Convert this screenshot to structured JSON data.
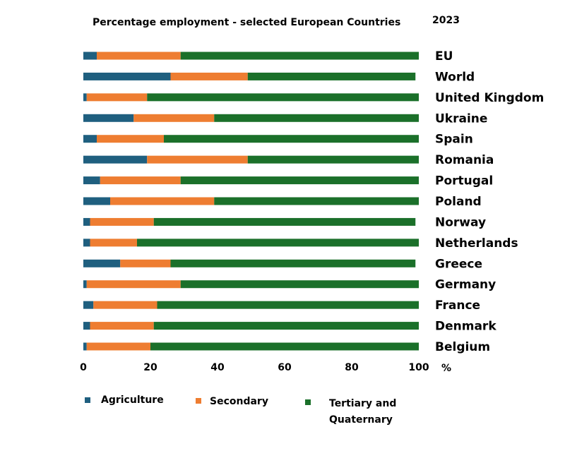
{
  "chart_data": {
    "type": "bar",
    "orientation": "horizontal",
    "stacked": true,
    "title": "Percentage employment - selected European Countries",
    "year_label": "2023",
    "xlabel": "%",
    "ylabel": "",
    "xlim": [
      0,
      100
    ],
    "x_ticks": [
      "0",
      "20",
      "40",
      "60",
      "80",
      "100"
    ],
    "grid": false,
    "legend_position": "bottom",
    "categories": [
      "EU",
      "World",
      "United Kingdom",
      "Ukraine",
      "Spain",
      "Romania",
      "Portugal",
      "Poland",
      "Norway",
      "Netherlands",
      "Greece",
      "Germany",
      "France",
      "Denmark",
      "Belgium"
    ],
    "series": [
      {
        "name": "Agriculture",
        "color": "#1f5f7f",
        "values": [
          4,
          26,
          1,
          15,
          4,
          19,
          5,
          8,
          2,
          2,
          11,
          1,
          3,
          2,
          1
        ]
      },
      {
        "name": "Secondary",
        "color": "#ee7d31",
        "values": [
          25,
          23,
          18,
          24,
          20,
          30,
          24,
          31,
          19,
          14,
          15,
          28,
          19,
          19,
          19
        ]
      },
      {
        "name": "Tertiary and Quaternary",
        "color": "#1b702a",
        "values": [
          71,
          50,
          81,
          61,
          76,
          51,
          71,
          61,
          78,
          84,
          73,
          71,
          78,
          79,
          80
        ]
      }
    ]
  }
}
